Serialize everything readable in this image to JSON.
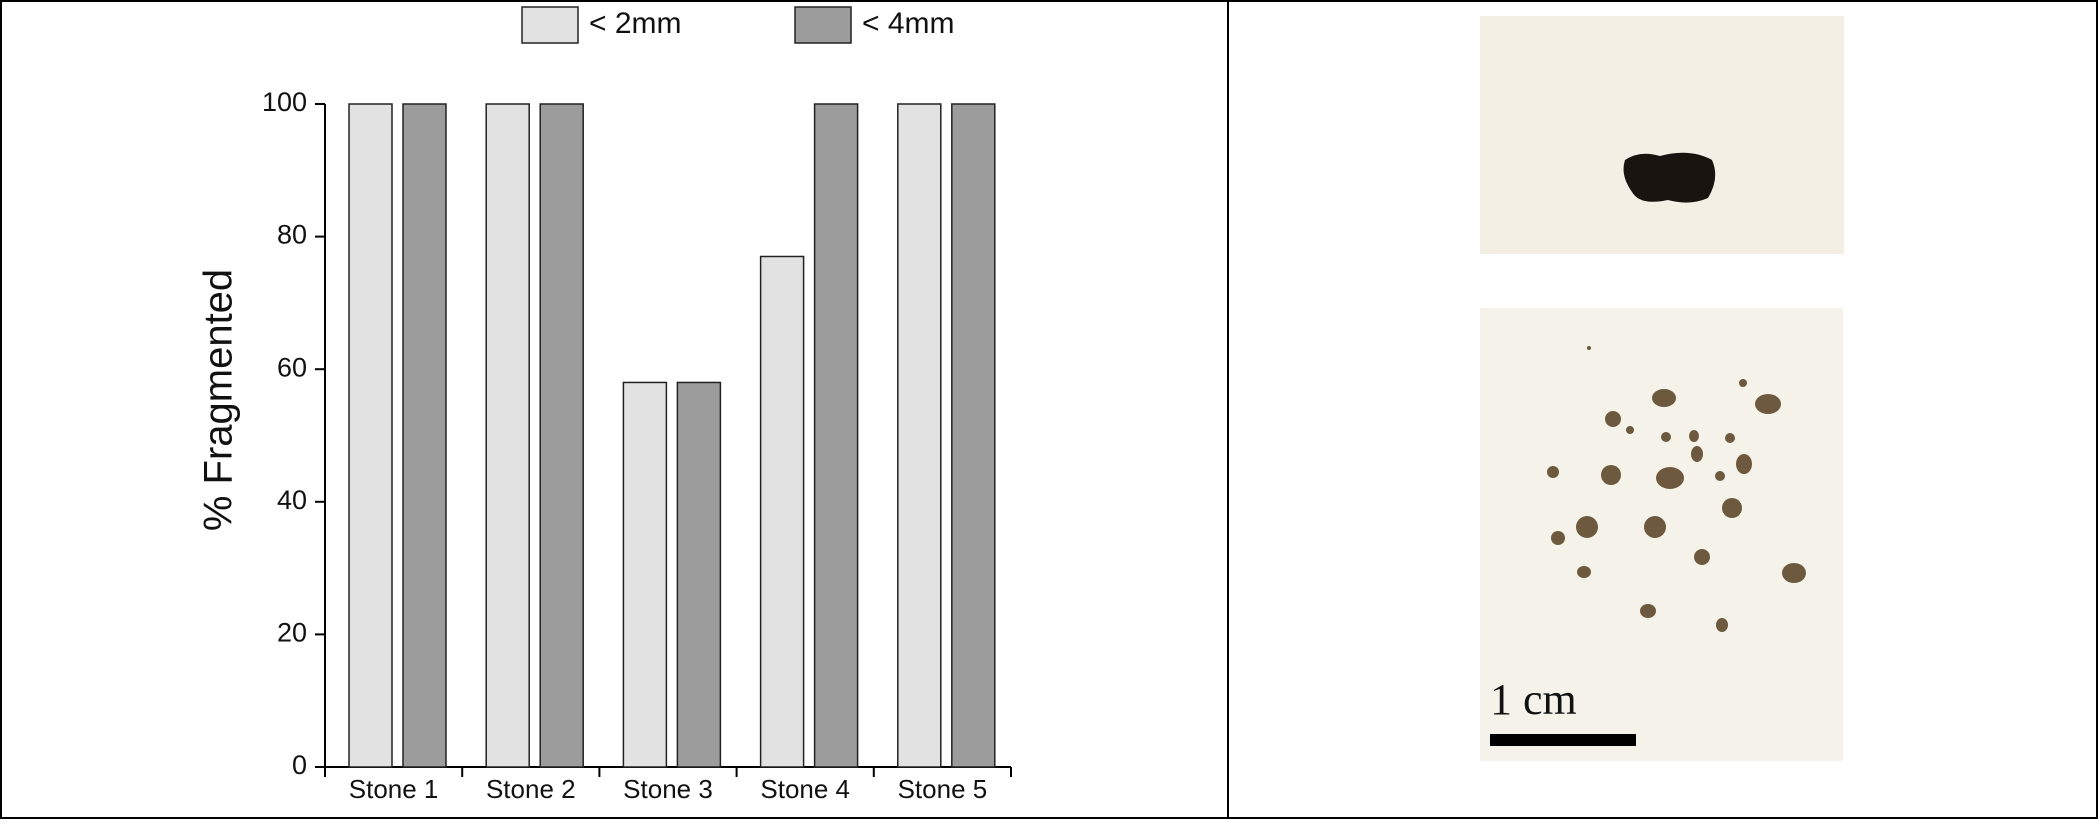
{
  "chart_data": {
    "type": "bar",
    "ylabel": "% Fragmented",
    "categories": [
      "Stone 1",
      "Stone 2",
      "Stone 3",
      "Stone 4",
      "Stone 5"
    ],
    "series": [
      {
        "name": "< 2mm",
        "color": "#e2e2e2",
        "values": [
          100,
          100,
          58,
          77,
          100
        ]
      },
      {
        "name": "< 4mm",
        "color": "#9c9c9c",
        "values": [
          100,
          100,
          58,
          100,
          100
        ]
      }
    ],
    "ylim": [
      0,
      100
    ],
    "yticks": [
      0,
      20,
      40,
      60,
      80,
      100
    ],
    "grid": false,
    "legend": "top"
  },
  "scale_bar_label": "1 cm"
}
